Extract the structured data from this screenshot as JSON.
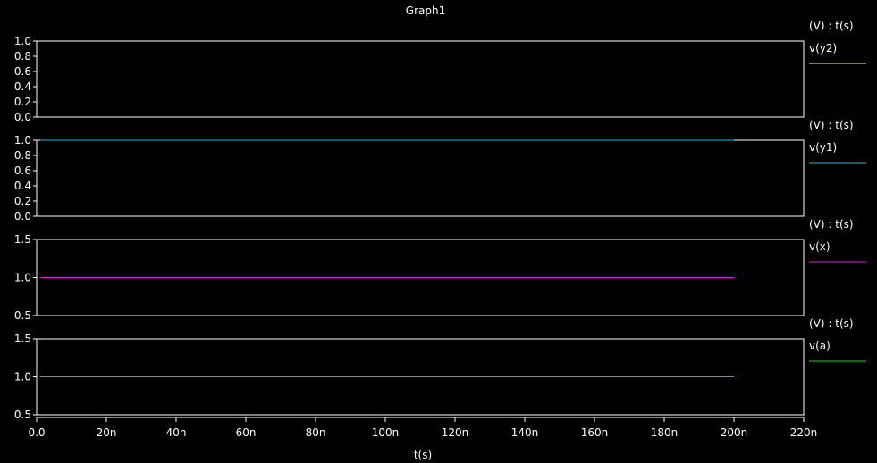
{
  "window": {
    "title": "Graph1"
  },
  "colors": {
    "background": "#000000",
    "axis": "#ffffff",
    "text": "#ffffff"
  },
  "chart_data": {
    "type": "line",
    "title": "Graph1",
    "xlabel": "t(s)",
    "xlim": [
      0,
      2.2e-07
    ],
    "x_ticks": [
      0,
      2e-08,
      4e-08,
      6e-08,
      8e-08,
      1e-07,
      1.2e-07,
      1.4e-07,
      1.6e-07,
      1.8e-07,
      2e-07,
      2.2e-07
    ],
    "x_tick_labels": [
      "0.0",
      "20n",
      "40n",
      "60n",
      "80n",
      "100n",
      "120n",
      "140n",
      "160n",
      "180n",
      "200n",
      "220n"
    ],
    "grid": false,
    "legend": "right",
    "panels": [
      {
        "unit_label": "(V) : t(s)",
        "ylim": [
          0,
          1
        ],
        "y_ticks": [
          0,
          0.2,
          0.4,
          0.6,
          0.8,
          1.0
        ],
        "y_tick_labels": [
          "0.0",
          "0.2",
          "0.4",
          "0.6",
          "0.8",
          "1.0"
        ],
        "series": [
          {
            "name": "v(y2)",
            "color": "#ffff9a",
            "x": [],
            "y": []
          }
        ]
      },
      {
        "unit_label": "(V) : t(s)",
        "ylim": [
          0,
          1
        ],
        "y_ticks": [
          0,
          0.2,
          0.4,
          0.6,
          0.8,
          1.0
        ],
        "y_tick_labels": [
          "0.0",
          "0.2",
          "0.4",
          "0.6",
          "0.8",
          "1.0"
        ],
        "series": [
          {
            "name": "v(y1)",
            "color": "#00c8d6",
            "x": [
              1e-09,
              2e-07
            ],
            "y": [
              1.0,
              1.0
            ]
          }
        ]
      },
      {
        "unit_label": "(V) : t(s)",
        "ylim": [
          0.5,
          1.5
        ],
        "y_ticks": [
          0.5,
          1.0,
          1.5
        ],
        "y_tick_labels": [
          "0.5",
          "1.0",
          "1.5"
        ],
        "series": [
          {
            "name": "v(x)",
            "color": "#e61ee6",
            "x": [
              1e-09,
              2e-07
            ],
            "y": [
              1.0,
              1.0
            ]
          }
        ]
      },
      {
        "unit_label": "(V) : t(s)",
        "ylim": [
          0.5,
          1.5
        ],
        "y_ticks": [
          0.5,
          1.0,
          1.5
        ],
        "y_tick_labels": [
          "0.5",
          "1.0",
          "1.5"
        ],
        "series": [
          {
            "name": "v(a)",
            "color": "#19d219",
            "x": [
              1e-09,
              2e-07
            ],
            "y": [
              1.0,
              1.0
            ]
          }
        ]
      }
    ]
  }
}
